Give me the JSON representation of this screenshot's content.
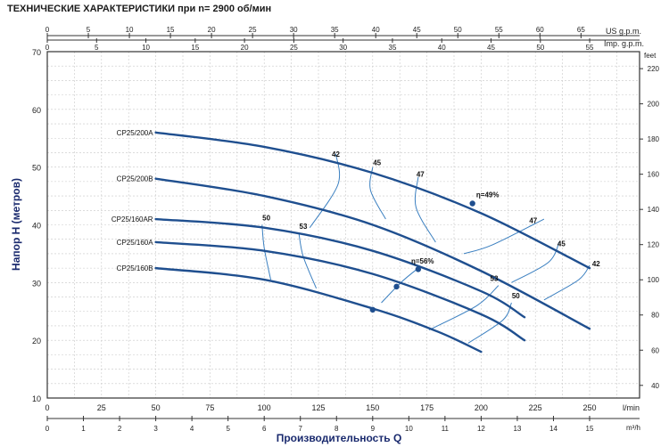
{
  "title": "ТЕХНИЧЕСКИЕ ХАРАКТЕРИСТИКИ при n= 2900 об/мин",
  "colors": {
    "curve": "#1f4f8f",
    "efficiency": "#3a7fc0",
    "grid": "#c8c8c8",
    "frame": "#333333"
  },
  "chart_data": {
    "type": "line",
    "title": "ТЕХНИЧЕСКИЕ ХАРАКТЕРИСТИКИ при n= 2900 об/мин",
    "xlabel": "Производительность Q",
    "ylabel": "Напор Н (метров)",
    "xlim": [
      0,
      265
    ],
    "ylim": [
      10,
      70
    ],
    "grid": true,
    "x_unit": "l/min",
    "x_unit_m3h": "m³/h",
    "y_unit_right": "feet",
    "top_unit_us": "US g.p.m.",
    "top_unit_imp": "Imp. g.p.m.",
    "x_ticks_lmin": [
      "0",
      "25",
      "50",
      "75",
      "100",
      "125",
      "150",
      "175",
      "200",
      "225",
      "250"
    ],
    "x_ticks_m3h": [
      "0",
      "1",
      "2",
      "3",
      "4",
      "5",
      "6",
      "7",
      "8",
      "9",
      "10",
      "11",
      "12",
      "13",
      "14",
      "15"
    ],
    "y_ticks_m": [
      "10",
      "20",
      "30",
      "40",
      "50",
      "60",
      "70"
    ],
    "y_ticks_feet": [
      "40",
      "60",
      "80",
      "100",
      "120",
      "140",
      "160",
      "180",
      "200",
      "220"
    ],
    "top_ticks_us": [
      "0",
      "5",
      "10",
      "15",
      "20",
      "25",
      "30",
      "35",
      "40",
      "45",
      "50",
      "55",
      "60",
      "65"
    ],
    "top_ticks_imp": [
      "0",
      "5",
      "10",
      "15",
      "20",
      "25",
      "30",
      "35",
      "40",
      "45",
      "50",
      "55"
    ],
    "series": [
      {
        "name": "CP25/200A",
        "x": [
          50,
          100,
          150,
          200,
          250
        ],
        "y": [
          56,
          53.5,
          49,
          42,
          32.5
        ]
      },
      {
        "name": "CP25/200B",
        "x": [
          50,
          100,
          150,
          200,
          250
        ],
        "y": [
          48,
          45,
          40,
          32,
          22
        ]
      },
      {
        "name": "CP25/160AR",
        "x": [
          50,
          100,
          150,
          200,
          220
        ],
        "y": [
          41,
          39.5,
          35.5,
          28.5,
          24
        ]
      },
      {
        "name": "CP25/160A",
        "x": [
          50,
          100,
          150,
          200,
          220
        ],
        "y": [
          37,
          35.5,
          31.5,
          24.5,
          20
        ]
      },
      {
        "name": "CP25/160B",
        "x": [
          50,
          100,
          150,
          180,
          200
        ],
        "y": [
          32.5,
          30.5,
          25.5,
          21.5,
          18
        ]
      }
    ],
    "efficiency_labels": [
      {
        "label": "42",
        "x": 133,
        "y": 51.5
      },
      {
        "label": "45",
        "x": 152,
        "y": 50
      },
      {
        "label": "47",
        "x": 172,
        "y": 48
      },
      {
        "label": "η=49%",
        "x": 203,
        "y": 44.5
      },
      {
        "label": "47",
        "x": 224,
        "y": 40
      },
      {
        "label": "45",
        "x": 237,
        "y": 36
      },
      {
        "label": "42",
        "x": 253,
        "y": 32.5
      },
      {
        "label": "50",
        "x": 101,
        "y": 40.5
      },
      {
        "label": "53",
        "x": 118,
        "y": 39
      },
      {
        "label": "η=56%",
        "x": 173,
        "y": 33
      },
      {
        "label": "53",
        "x": 206,
        "y": 30
      },
      {
        "label": "50",
        "x": 216,
        "y": 27
      }
    ],
    "bep_points": [
      {
        "x": 196,
        "y": 43.7
      },
      {
        "x": 171,
        "y": 32.3
      },
      {
        "x": 161,
        "y": 29.3
      },
      {
        "x": 150,
        "y": 25.3
      }
    ],
    "efficiency_lines": [
      [
        [
          121,
          39.5
        ],
        [
          134,
          47
        ],
        [
          133,
          52.3
        ]
      ],
      [
        [
          156,
          41
        ],
        [
          149,
          46
        ],
        [
          150,
          50
        ]
      ],
      [
        [
          179,
          37
        ],
        [
          170,
          43
        ],
        [
          171,
          48.3
        ]
      ],
      [
        [
          192,
          35
        ],
        [
          205,
          36.5
        ],
        [
          229,
          41
        ]
      ],
      [
        [
          214,
          30
        ],
        [
          231,
          33.5
        ],
        [
          236,
          37
        ]
      ],
      [
        [
          229,
          27
        ],
        [
          245,
          30.5
        ],
        [
          250,
          33
        ]
      ],
      [
        [
          103,
          30.5
        ],
        [
          100,
          36
        ],
        [
          99,
          40
        ]
      ],
      [
        [
          124,
          29
        ],
        [
          118,
          34.5
        ],
        [
          116,
          38.5
        ]
      ],
      [
        [
          154,
          26.5
        ],
        [
          163,
          30
        ],
        [
          171,
          32.5
        ]
      ],
      [
        [
          176,
          21.8
        ],
        [
          198,
          26
        ],
        [
          208,
          29.5
        ]
      ],
      [
        [
          194,
          19.5
        ],
        [
          210,
          23.5
        ],
        [
          214,
          26.5
        ]
      ]
    ]
  }
}
